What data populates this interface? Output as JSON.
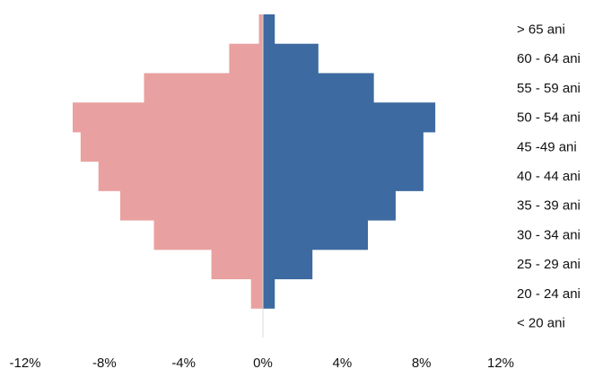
{
  "chart_data": {
    "type": "bar",
    "orientation": "horizontal",
    "layout": "population-pyramid",
    "title": "",
    "xlabel": "",
    "ylabel": "",
    "categories": [
      "> 65 ani",
      "60 - 64 ani",
      "55 - 59 ani",
      "50 - 54 ani",
      "45 -49 ani",
      "40 - 44 ani",
      "35 - 39 ani",
      "30 - 34 ani",
      "25 - 29 ani",
      "20 - 24 ani",
      "< 20 ani"
    ],
    "series": [
      {
        "color": "#e8a1a0",
        "side": "left",
        "values": [
          -0.2,
          -1.7,
          -6.0,
          -9.6,
          -9.2,
          -8.3,
          -7.2,
          -5.5,
          -2.6,
          -0.6,
          0
        ]
      },
      {
        "color": "#3d6aa0",
        "side": "right",
        "values": [
          0.6,
          2.8,
          5.6,
          8.7,
          8.1,
          8.1,
          6.7,
          5.3,
          2.5,
          0.6,
          0
        ]
      }
    ],
    "xlim": [
      -12,
      12
    ],
    "xticks": [
      -12,
      -8,
      -4,
      0,
      4,
      8,
      12
    ],
    "xtick_labels": [
      "-12%",
      "-8%",
      "-4%",
      "0%",
      "4%",
      "8%",
      "12%"
    ],
    "grid": false,
    "legend": "none"
  }
}
